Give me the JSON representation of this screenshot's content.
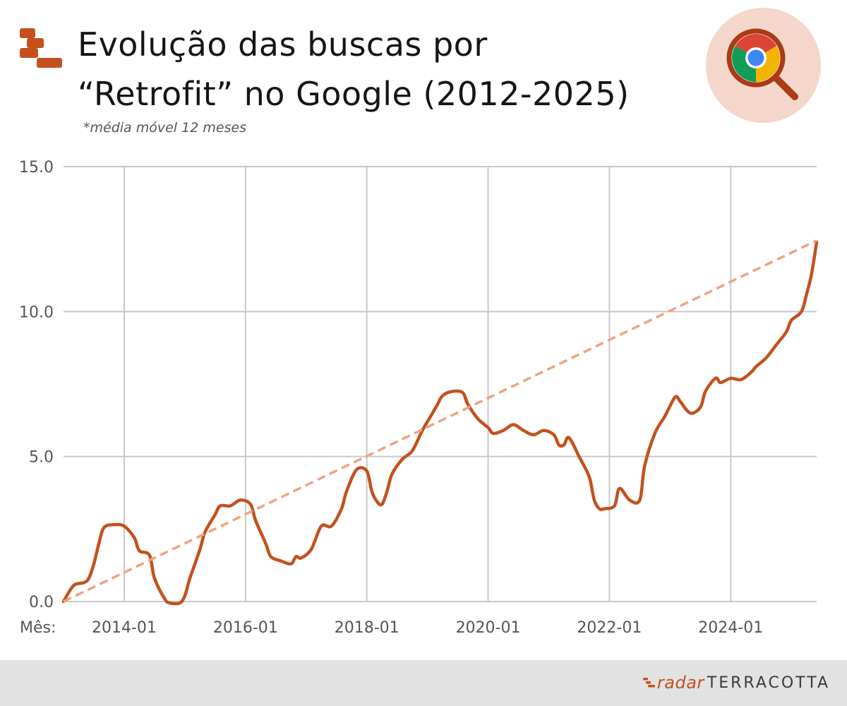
{
  "header": {
    "title_line1": "Evolução das buscas por",
    "title_line2": "“Retrofit” no Google (2012-2025)",
    "subtitle": "*média móvel 12 meses",
    "logo_icon": "stacked-bars-logo-icon",
    "badge_icon": "chrome-magnifier-icon"
  },
  "chart_data": {
    "type": "line",
    "title": "Evolução das buscas por “Retrofit” no Google (2012-2025)",
    "subtitle": "*média móvel 12 meses",
    "xlabel": "Mês:",
    "ylabel": "",
    "ylim": [
      0,
      15
    ],
    "xlim": [
      "2013-01",
      "2025-06"
    ],
    "yticks": [
      "0.0",
      "5.0",
      "10.0",
      "15.0"
    ],
    "xticks": [
      "2014-01",
      "2016-01",
      "2018-01",
      "2020-01",
      "2022-01",
      "2024-01"
    ],
    "grid": true,
    "series": [
      {
        "color": "#c4511d",
        "style": "solid",
        "points": [
          [
            "2013-01",
            0.0
          ],
          [
            "2013-03",
            0.55
          ],
          [
            "2013-05",
            0.65
          ],
          [
            "2013-06",
            0.8
          ],
          [
            "2013-07",
            1.3
          ],
          [
            "2013-08",
            2.0
          ],
          [
            "2013-09",
            2.55
          ],
          [
            "2013-11",
            2.65
          ],
          [
            "2014-01",
            2.6
          ],
          [
            "2014-03",
            2.2
          ],
          [
            "2014-04",
            1.75
          ],
          [
            "2014-06",
            1.6
          ],
          [
            "2014-07",
            0.8
          ],
          [
            "2014-09",
            0.1
          ],
          [
            "2014-10",
            -0.05
          ],
          [
            "2014-12",
            -0.05
          ],
          [
            "2015-01",
            0.2
          ],
          [
            "2015-02",
            0.8
          ],
          [
            "2015-04",
            1.8
          ],
          [
            "2015-05",
            2.4
          ],
          [
            "2015-07",
            3.0
          ],
          [
            "2015-08",
            3.3
          ],
          [
            "2015-10",
            3.3
          ],
          [
            "2015-12",
            3.5
          ],
          [
            "2016-02",
            3.35
          ],
          [
            "2016-03",
            2.8
          ],
          [
            "2016-05",
            2.0
          ],
          [
            "2016-06",
            1.55
          ],
          [
            "2016-08",
            1.4
          ],
          [
            "2016-10",
            1.3
          ],
          [
            "2016-11",
            1.55
          ],
          [
            "2016-12",
            1.5
          ],
          [
            "2017-02",
            1.8
          ],
          [
            "2017-04",
            2.6
          ],
          [
            "2017-06",
            2.6
          ],
          [
            "2017-08",
            3.2
          ],
          [
            "2017-09",
            3.8
          ],
          [
            "2017-11",
            4.55
          ],
          [
            "2018-01",
            4.5
          ],
          [
            "2018-02",
            3.8
          ],
          [
            "2018-03",
            3.45
          ],
          [
            "2018-04",
            3.35
          ],
          [
            "2018-05",
            3.8
          ],
          [
            "2018-06",
            4.4
          ],
          [
            "2018-08",
            4.9
          ],
          [
            "2018-10",
            5.2
          ],
          [
            "2018-12",
            5.9
          ],
          [
            "2019-02",
            6.5
          ],
          [
            "2019-03",
            6.8
          ],
          [
            "2019-04",
            7.1
          ],
          [
            "2019-06",
            7.25
          ],
          [
            "2019-08",
            7.2
          ],
          [
            "2019-09",
            6.8
          ],
          [
            "2019-11",
            6.3
          ],
          [
            "2020-01",
            6.0
          ],
          [
            "2020-02",
            5.8
          ],
          [
            "2020-04",
            5.9
          ],
          [
            "2020-06",
            6.1
          ],
          [
            "2020-08",
            5.9
          ],
          [
            "2020-10",
            5.75
          ],
          [
            "2020-12",
            5.9
          ],
          [
            "2021-02",
            5.75
          ],
          [
            "2021-03",
            5.4
          ],
          [
            "2021-04",
            5.4
          ],
          [
            "2021-05",
            5.65
          ],
          [
            "2021-07",
            5.0
          ],
          [
            "2021-09",
            4.3
          ],
          [
            "2021-10",
            3.5
          ],
          [
            "2021-11",
            3.2
          ],
          [
            "2021-12",
            3.2
          ],
          [
            "2022-02",
            3.3
          ],
          [
            "2022-03",
            3.9
          ],
          [
            "2022-05",
            3.5
          ],
          [
            "2022-07",
            3.5
          ],
          [
            "2022-08",
            4.7
          ],
          [
            "2022-10",
            5.8
          ],
          [
            "2022-12",
            6.4
          ],
          [
            "2023-02",
            7.05
          ],
          [
            "2023-03",
            6.9
          ],
          [
            "2023-05",
            6.5
          ],
          [
            "2023-07",
            6.7
          ],
          [
            "2023-08",
            7.25
          ],
          [
            "2023-10",
            7.7
          ],
          [
            "2023-11",
            7.55
          ],
          [
            "2024-01",
            7.7
          ],
          [
            "2024-03",
            7.65
          ],
          [
            "2024-05",
            7.9
          ],
          [
            "2024-06",
            8.1
          ],
          [
            "2024-08",
            8.4
          ],
          [
            "2024-10",
            8.85
          ],
          [
            "2024-12",
            9.3
          ],
          [
            "2025-01",
            9.7
          ],
          [
            "2025-03",
            10.0
          ],
          [
            "2025-04",
            10.6
          ],
          [
            "2025-05",
            11.3
          ],
          [
            "2025-06",
            12.4
          ]
        ]
      },
      {
        "color": "#eea47f",
        "style": "dashed",
        "points": [
          [
            "2013-01",
            0.0
          ],
          [
            "2025-06",
            12.45
          ]
        ]
      }
    ]
  },
  "footer": {
    "brand_radar": "radar",
    "brand_terracotta": "TERRACOTTA",
    "brand_icon": "radar-terracotta-logo-icon"
  }
}
